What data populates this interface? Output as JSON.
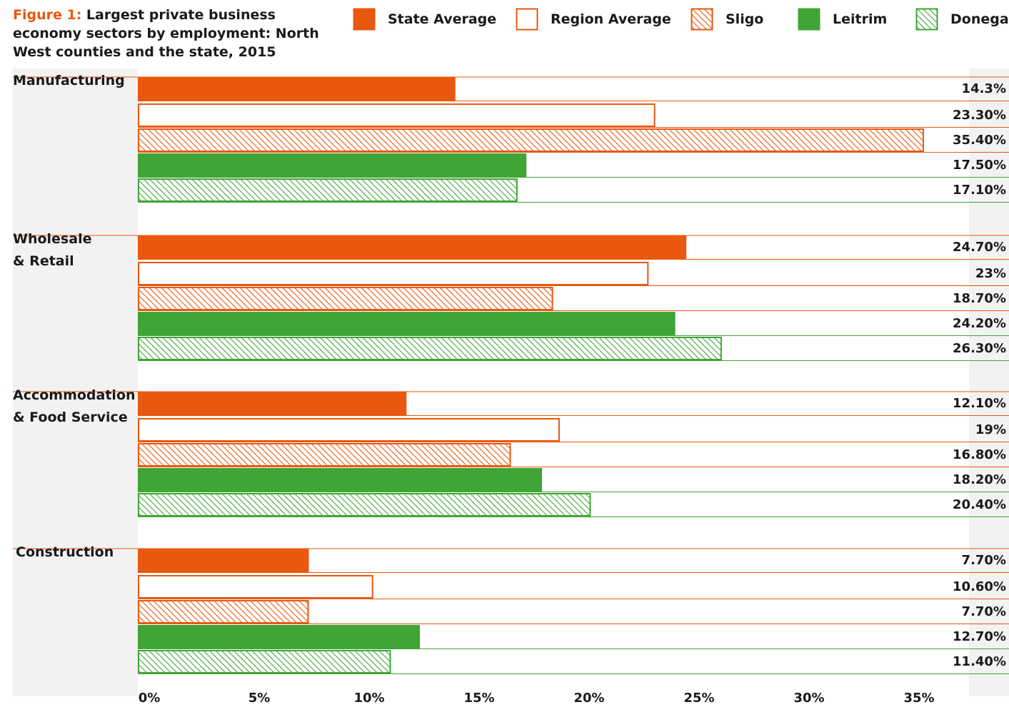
{
  "title": {
    "prefix": "Figure 1:",
    "text": " Largest private business economy sectors by employment: North West counties and the state, 2015"
  },
  "colors": {
    "orange": "#e8580e",
    "green": "#3fa535",
    "panel": "#f2f2f2",
    "text": "#1a1a1a"
  },
  "legend": [
    {
      "label": "State Average",
      "style": "orange-solid"
    },
    {
      "label": "Region Average",
      "style": "orange-outline"
    },
    {
      "label": "Sligo",
      "style": "orange-hatch"
    },
    {
      "label": "Leitrim",
      "style": "green-solid"
    },
    {
      "label": "Donegal",
      "style": "green-hatch"
    }
  ],
  "chart_data": {
    "type": "bar",
    "orientation": "horizontal",
    "title": "Figure 1: Largest private business economy sectors by employment: North West counties and the state, 2015",
    "xlabel": "",
    "ylabel": "",
    "xlim": [
      0,
      35
    ],
    "x_ticks": [
      "0%",
      "5%",
      "10%",
      "15%",
      "20%",
      "25%",
      "30%",
      "35%"
    ],
    "legend_position": "top",
    "grid": false,
    "categories": [
      "Manufacturing",
      "Wholesale\n& Retail",
      "Accommodation\n& Food Service",
      "Construction"
    ],
    "series": [
      {
        "name": "State Average",
        "values": [
          14.3,
          24.7,
          12.1,
          7.7
        ],
        "labels": [
          "14.3%",
          "24.70%",
          "12.10%",
          "7.70%"
        ]
      },
      {
        "name": "Region Average",
        "values": [
          23.3,
          23,
          19,
          10.6
        ],
        "labels": [
          "23.30%",
          "23%",
          "19%",
          "10.60%"
        ]
      },
      {
        "name": "Sligo",
        "values": [
          35.4,
          18.7,
          16.8,
          7.7
        ],
        "labels": [
          "35.40%",
          "18.70%",
          "16.80%",
          "7.70%"
        ]
      },
      {
        "name": "Leitrim",
        "values": [
          17.5,
          24.2,
          18.2,
          12.7
        ],
        "labels": [
          "17.50%",
          "24.20%",
          "18.20%",
          "12.70%"
        ]
      },
      {
        "name": "Donegal",
        "values": [
          17.1,
          26.3,
          20.4,
          11.4
        ],
        "labels": [
          "17.10%",
          "26.30%",
          "20.40%",
          "11.40%"
        ]
      }
    ]
  }
}
